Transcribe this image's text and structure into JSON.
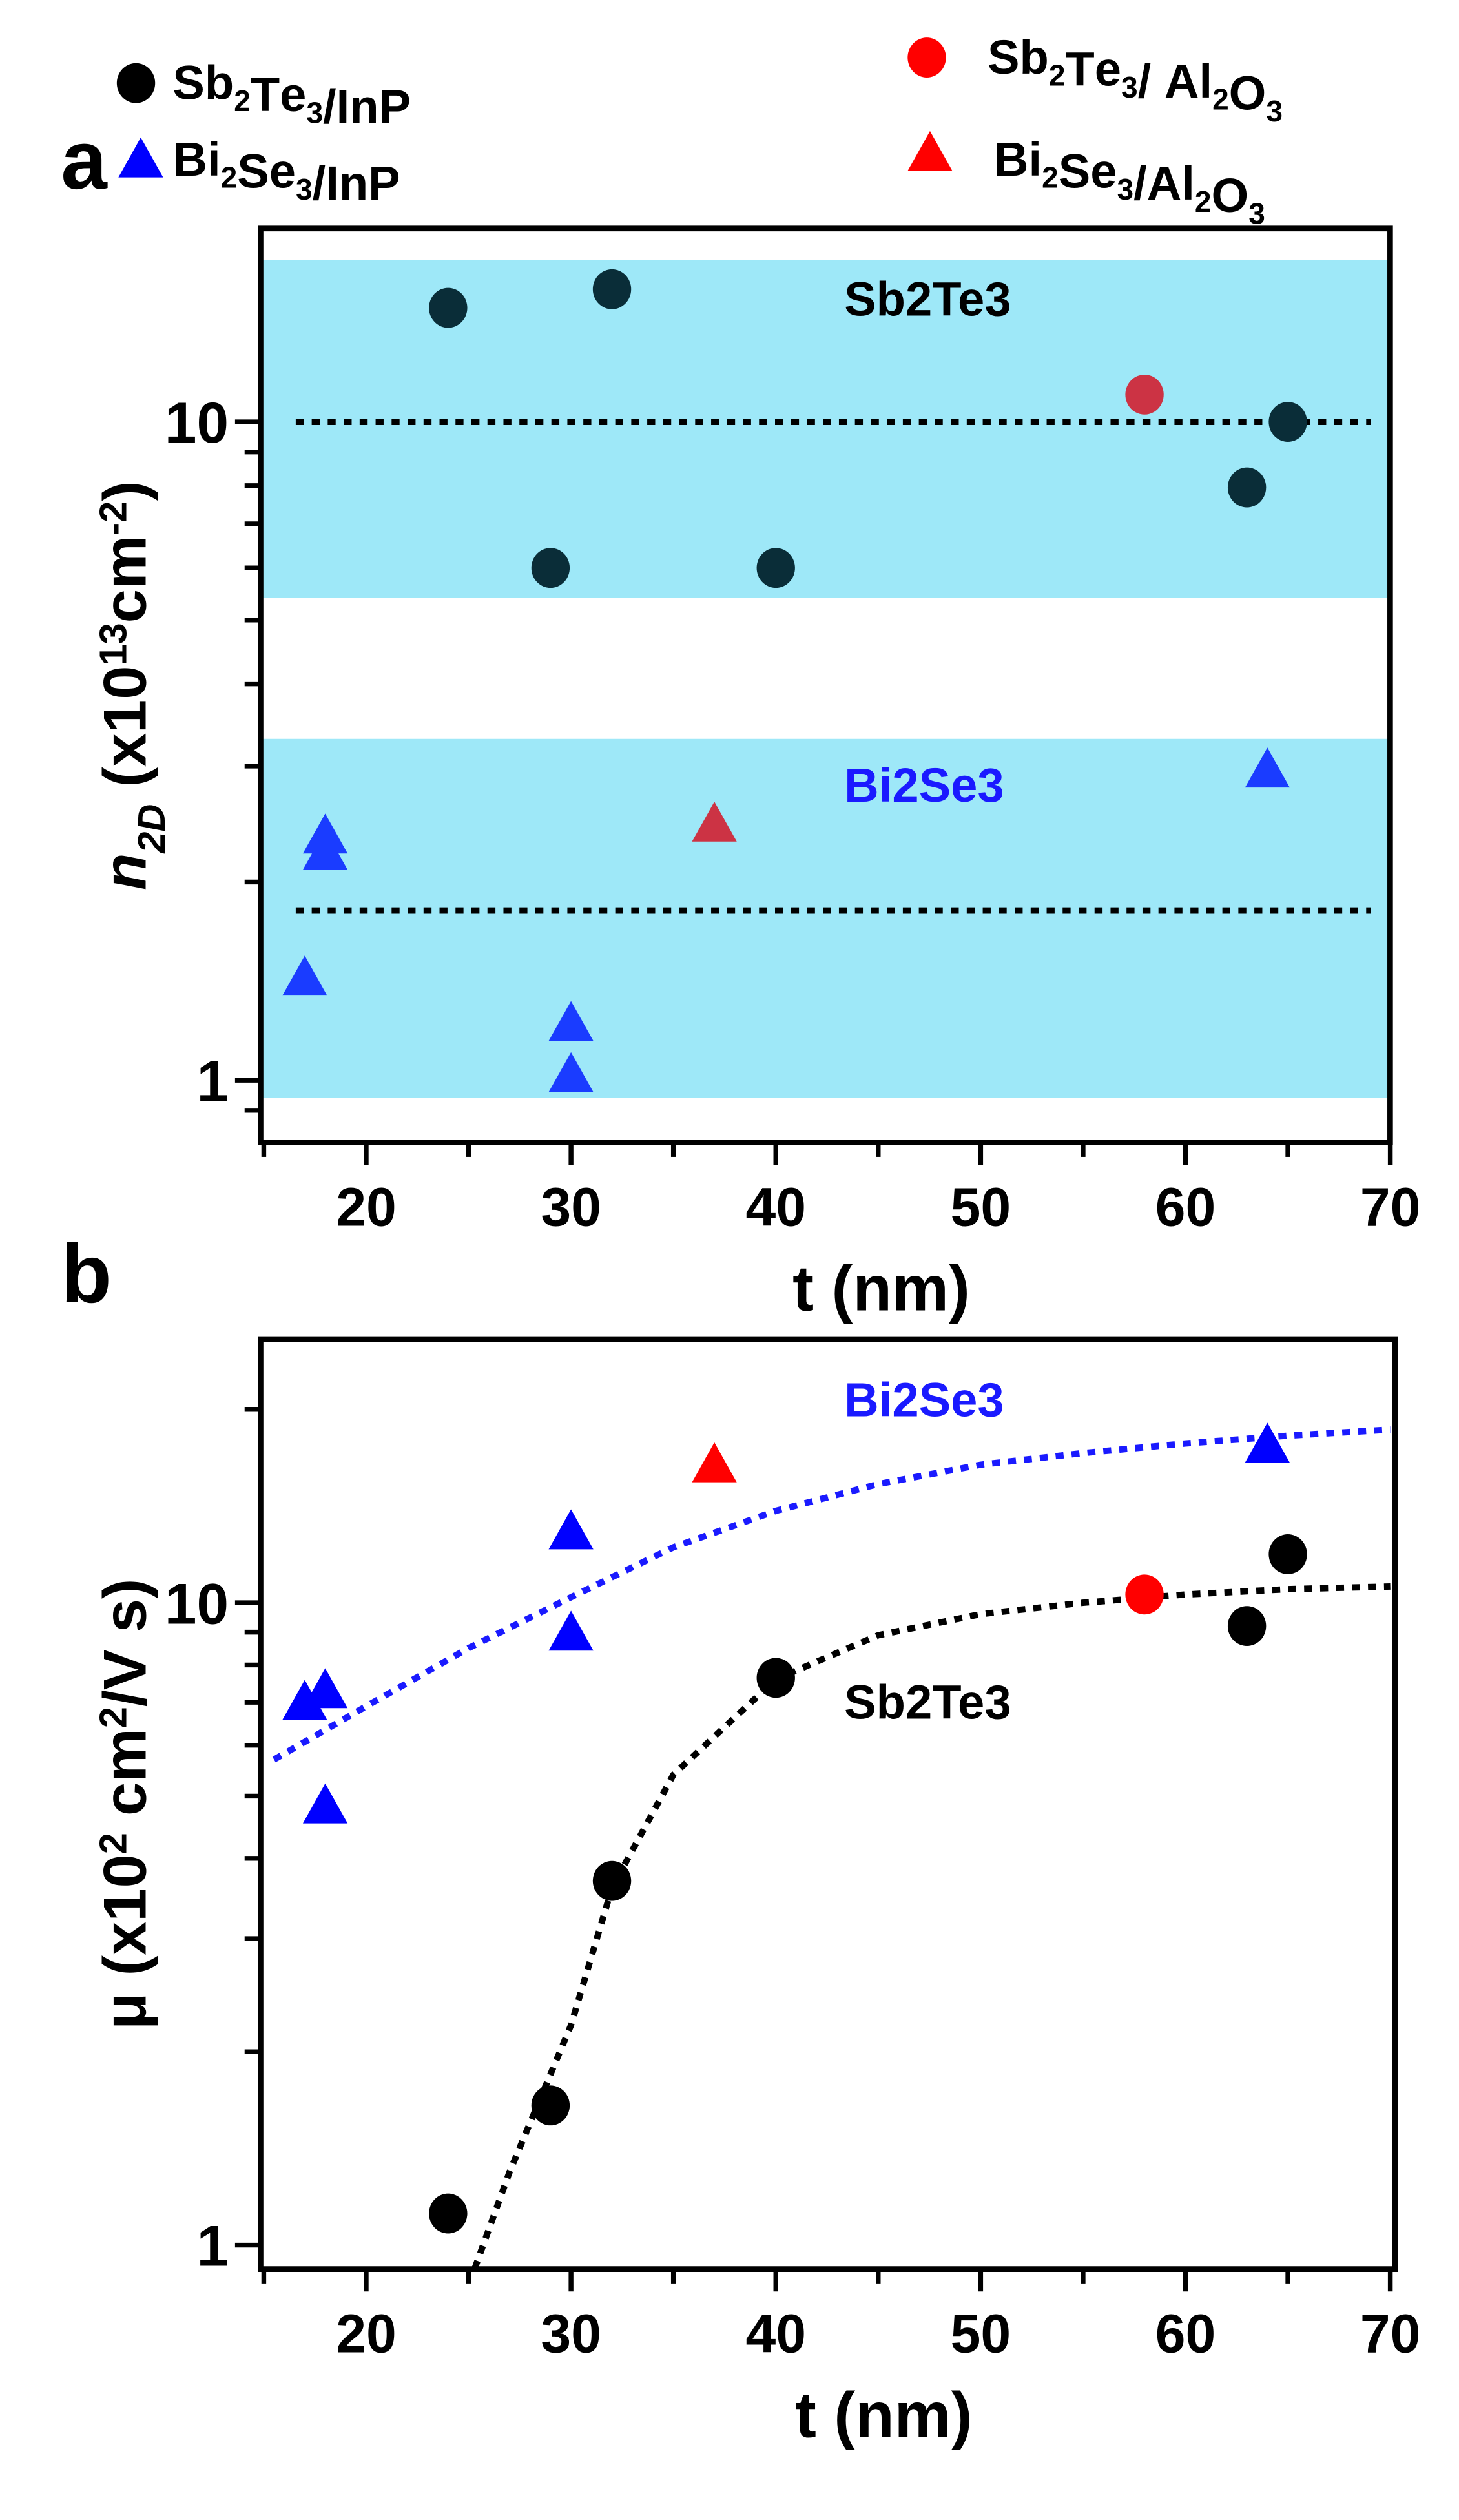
{
  "legend": [
    {
      "label": "Sb2Te3/InP",
      "marker": "circle",
      "color": "#000000"
    },
    {
      "label": "Sb2Te3/ Al2O3",
      "marker": "circle",
      "color": "#ff0000"
    },
    {
      "label": "Bi2Se3/InP",
      "marker": "triangle",
      "color": "#0000ff"
    },
    {
      "label": "Bi2Se3/Al2O3",
      "marker": "triangle",
      "color": "#ff0000"
    }
  ],
  "chart_data": [
    {
      "panel": "a",
      "type": "scatter",
      "xlabel": "t (nm)",
      "ylabel": {
        "symbol": "n",
        "sub": "2D",
        "unit_pre": " (x10",
        "sup": "13",
        "unit_mid": "cm",
        "sup2": "-2",
        "unit_post": ")"
      },
      "xlim": [
        15,
        70
      ],
      "ylim": [
        0.8,
        20
      ],
      "yscale": "log",
      "xticks": [
        20,
        30,
        40,
        50,
        60,
        70
      ],
      "yticks": [
        1,
        10
      ],
      "bands": [
        {
          "label": "Sb2Te3",
          "range": [
            5.4,
            17.6
          ],
          "color": "#9ee8f8",
          "label_color": "#000000",
          "label_at": [
            41,
            14.5
          ]
        },
        {
          "label": "Bi2Se3",
          "range": [
            0.94,
            3.3
          ],
          "color": "#9ee8f8",
          "label_color": "#1a1aff",
          "label_at": [
            41,
            2.65
          ]
        }
      ],
      "reference_lines": [
        10,
        1.81
      ],
      "series": [
        {
          "name": "Sb2Te3/InP",
          "marker": "circle",
          "color": "#0a2d38",
          "x": [
            24,
            32,
            29,
            40,
            63,
            65
          ],
          "y": [
            14.9,
            15.9,
            6.0,
            6.0,
            7.95,
            10.0
          ]
        },
        {
          "name": "Sb2Te3/ Al2O3",
          "marker": "circle",
          "color": "#cc3344",
          "x": [
            58
          ],
          "y": [
            11.0
          ]
        },
        {
          "name": "Bi2Se3/InP",
          "marker": "triangle",
          "color": "#1a3cff",
          "x": [
            17,
            18,
            18,
            30,
            30,
            64
          ],
          "y": [
            1.43,
            2.22,
            2.35,
            1.22,
            1.02,
            2.96
          ]
        },
        {
          "name": "Bi2Se3/Al2O3",
          "marker": "triangle",
          "color": "#cc3344",
          "x": [
            37
          ],
          "y": [
            2.45
          ]
        }
      ]
    },
    {
      "panel": "b",
      "type": "scatter",
      "xlabel": "t (nm)",
      "ylabel": {
        "symbol": "μ",
        "sub": "",
        "unit_pre": " (x10",
        "sup": "2",
        "unit_mid": " cm",
        "sup2": "2",
        "unit_post": "/V s)"
      },
      "xlim": [
        15,
        70
      ],
      "ylim": [
        0.92,
        25.7
      ],
      "yscale": "log",
      "xticks": [
        20,
        30,
        40,
        50,
        60,
        70
      ],
      "yticks": [
        1,
        10
      ],
      "curve_labels": [
        {
          "label": "Bi2Se3",
          "color": "#1a1aff",
          "at": [
            41,
            19.5
          ]
        },
        {
          "label": "Sb2Te3",
          "color": "#000000",
          "at": [
            41,
            6.6
          ]
        }
      ],
      "fits": [
        {
          "color": "#1a1aff",
          "x": [
            15.5,
            20,
            25,
            30,
            35,
            40,
            45,
            50,
            55,
            60,
            65,
            70
          ],
          "y": [
            5.7,
            6.9,
            8.5,
            10.2,
            12.2,
            13.9,
            15.3,
            16.4,
            17.1,
            17.7,
            18.2,
            18.6
          ]
        },
        {
          "color": "#000000",
          "x": [
            25.3,
            27,
            30,
            32,
            35,
            40,
            45,
            50,
            55,
            60,
            65,
            70
          ],
          "y": [
            0.92,
            1.3,
            2.2,
            3.6,
            5.4,
            7.6,
            8.9,
            9.6,
            10.0,
            10.3,
            10.5,
            10.6
          ]
        }
      ],
      "series": [
        {
          "name": "Sb2Te3/InP",
          "marker": "circle",
          "color": "#000000",
          "x": [
            24,
            29,
            32,
            40,
            63,
            65
          ],
          "y": [
            1.12,
            1.65,
            3.69,
            7.64,
            9.2,
            11.9
          ]
        },
        {
          "name": "Sb2Te3/ Al2O3",
          "marker": "circle",
          "color": "#ff0000",
          "x": [
            58
          ],
          "y": [
            10.3
          ]
        },
        {
          "name": "Bi2Se3/InP",
          "marker": "triangle",
          "color": "#0000ff",
          "x": [
            17,
            18,
            18,
            30,
            30,
            64
          ],
          "y": [
            7.0,
            7.3,
            4.83,
            12.9,
            8.97,
            17.6
          ]
        },
        {
          "name": "Bi2Se3/Al2O3",
          "marker": "triangle",
          "color": "#ff0000",
          "x": [
            37
          ],
          "y": [
            16.4
          ]
        }
      ]
    }
  ]
}
